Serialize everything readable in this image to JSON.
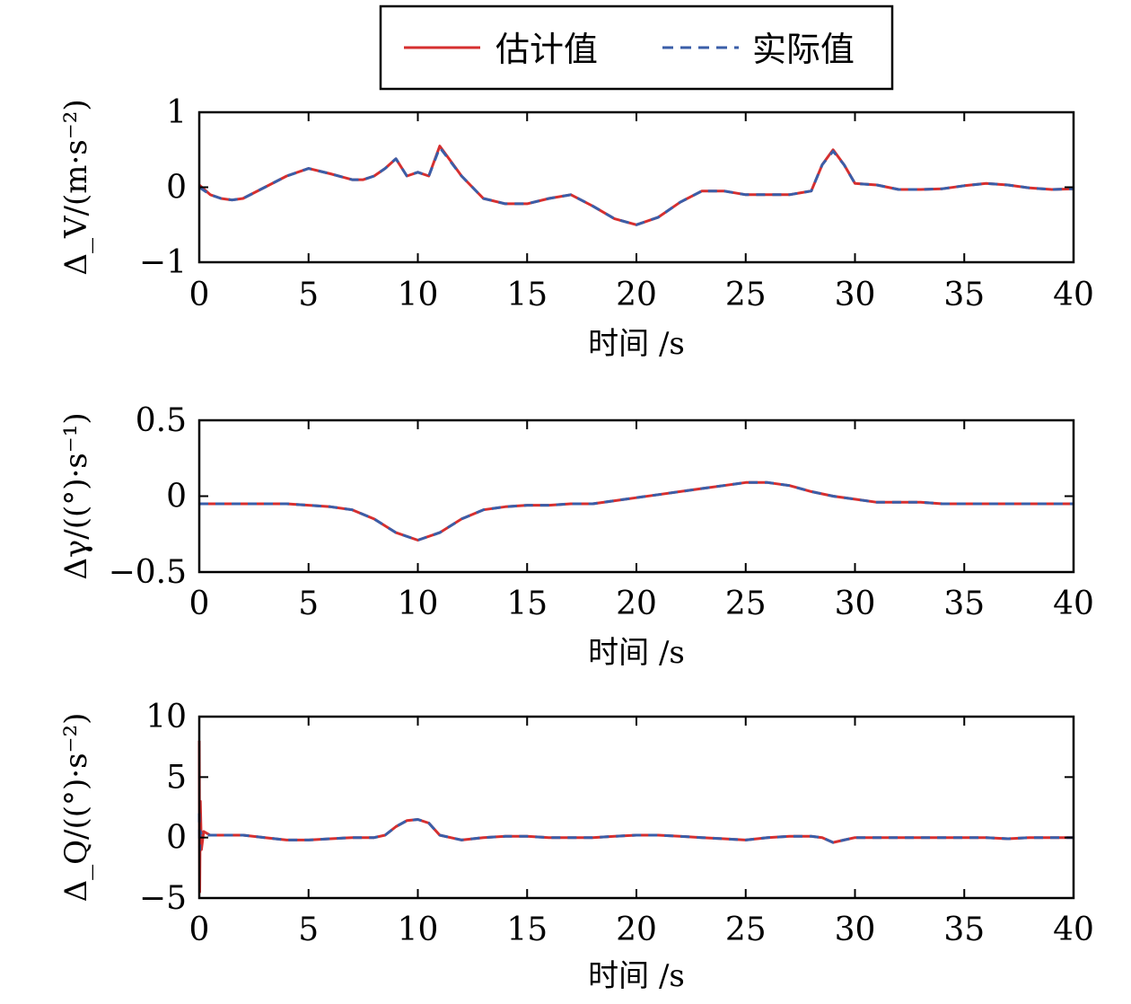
{
  "legend": {
    "estimated_label": "估计值",
    "actual_label": "实际值"
  },
  "colors": {
    "estimated": "#d62f2f",
    "actual": "#3a5ea8",
    "axis": "#000000"
  },
  "chart_data": [
    {
      "type": "line",
      "ylabel": "Δ_V/(m·s⁻²)",
      "xlabel": "时间 /s",
      "xlim": [
        0,
        40
      ],
      "ylim": [
        -1,
        1
      ],
      "xticks": [
        0,
        5,
        10,
        15,
        20,
        25,
        30,
        35,
        40
      ],
      "yticks": [
        -1,
        0,
        1
      ],
      "ytick_labels": [
        "−1",
        "0",
        "1"
      ],
      "x": [
        0,
        0.5,
        1,
        1.5,
        2,
        3,
        4,
        5,
        6,
        7,
        7.5,
        8,
        8.5,
        9,
        9.5,
        10,
        10.5,
        11,
        12,
        13,
        14,
        15,
        16,
        17,
        18,
        19,
        20,
        21,
        22,
        23,
        24,
        25,
        26,
        27,
        28,
        28.5,
        29,
        29.5,
        30,
        31,
        32,
        33,
        34,
        35,
        36,
        37,
        38,
        39,
        40
      ],
      "series": [
        {
          "name": "估计值",
          "values": [
            0.03,
            -0.1,
            -0.15,
            -0.17,
            -0.15,
            0.0,
            0.15,
            0.25,
            0.18,
            0.1,
            0.1,
            0.15,
            0.25,
            0.38,
            0.15,
            0.2,
            0.15,
            0.55,
            0.15,
            -0.15,
            -0.22,
            -0.22,
            -0.15,
            -0.1,
            -0.25,
            -0.42,
            -0.5,
            -0.4,
            -0.2,
            -0.05,
            -0.05,
            -0.1,
            -0.1,
            -0.1,
            -0.05,
            0.3,
            0.5,
            0.3,
            0.05,
            0.03,
            -0.03,
            -0.03,
            -0.02,
            0.02,
            0.05,
            0.03,
            -0.01,
            -0.03,
            -0.02
          ]
        },
        {
          "name": "实际值",
          "values": [
            0.0,
            -0.1,
            -0.15,
            -0.17,
            -0.15,
            0.0,
            0.15,
            0.25,
            0.18,
            0.1,
            0.1,
            0.15,
            0.25,
            0.38,
            0.15,
            0.2,
            0.15,
            0.53,
            0.15,
            -0.15,
            -0.22,
            -0.22,
            -0.15,
            -0.1,
            -0.25,
            -0.42,
            -0.5,
            -0.4,
            -0.2,
            -0.05,
            -0.05,
            -0.1,
            -0.1,
            -0.1,
            -0.05,
            0.3,
            0.48,
            0.3,
            0.05,
            0.03,
            -0.03,
            -0.03,
            -0.02,
            0.02,
            0.05,
            0.03,
            -0.01,
            -0.03,
            -0.02
          ]
        }
      ]
    },
    {
      "type": "line",
      "ylabel": "Δγ/((°)·s⁻¹)",
      "xlabel": "时间 /s",
      "xlim": [
        0,
        40
      ],
      "ylim": [
        -0.5,
        0.5
      ],
      "xticks": [
        0,
        5,
        10,
        15,
        20,
        25,
        30,
        35,
        40
      ],
      "yticks": [
        -0.5,
        0,
        0.5
      ],
      "ytick_labels": [
        "−0.5",
        "0",
        "0.5"
      ],
      "x": [
        0,
        2,
        4,
        5,
        6,
        7,
        8,
        9,
        10,
        11,
        12,
        13,
        14,
        15,
        16,
        17,
        18,
        19,
        20,
        21,
        22,
        23,
        24,
        25,
        26,
        27,
        28,
        29,
        30,
        31,
        32,
        33,
        34,
        35,
        36,
        37,
        38,
        39,
        40
      ],
      "series": [
        {
          "name": "估计值",
          "values": [
            -0.05,
            -0.05,
            -0.05,
            -0.06,
            -0.07,
            -0.09,
            -0.15,
            -0.24,
            -0.29,
            -0.24,
            -0.15,
            -0.09,
            -0.07,
            -0.06,
            -0.06,
            -0.05,
            -0.05,
            -0.03,
            -0.01,
            0.01,
            0.03,
            0.05,
            0.07,
            0.09,
            0.09,
            0.07,
            0.03,
            0.0,
            -0.02,
            -0.04,
            -0.04,
            -0.04,
            -0.05,
            -0.05,
            -0.05,
            -0.05,
            -0.05,
            -0.05,
            -0.05
          ]
        },
        {
          "name": "实际值",
          "values": [
            -0.05,
            -0.05,
            -0.05,
            -0.06,
            -0.07,
            -0.09,
            -0.15,
            -0.24,
            -0.29,
            -0.24,
            -0.15,
            -0.09,
            -0.07,
            -0.06,
            -0.06,
            -0.05,
            -0.05,
            -0.03,
            -0.01,
            0.01,
            0.03,
            0.05,
            0.07,
            0.09,
            0.09,
            0.07,
            0.03,
            0.0,
            -0.02,
            -0.04,
            -0.04,
            -0.04,
            -0.05,
            -0.05,
            -0.05,
            -0.05,
            -0.05,
            -0.05,
            -0.05
          ]
        }
      ]
    },
    {
      "type": "line",
      "ylabel": "Δ_Q/((°)·s⁻²)",
      "xlabel": "时间 /s",
      "xlim": [
        0,
        40
      ],
      "ylim": [
        -5,
        10
      ],
      "xticks": [
        0,
        5,
        10,
        15,
        20,
        25,
        30,
        35,
        40
      ],
      "yticks": [
        -5,
        0,
        5,
        10
      ],
      "ytick_labels": [
        "−5",
        "0",
        "5",
        "10"
      ],
      "x": [
        0,
        0.02,
        0.05,
        0.1,
        0.2,
        0.5,
        1,
        2,
        3,
        4,
        5,
        6,
        7,
        8,
        8.5,
        9,
        9.5,
        10,
        10.5,
        11,
        12,
        13,
        14,
        15,
        16,
        17,
        18,
        19,
        20,
        21,
        22,
        23,
        24,
        25,
        26,
        27,
        28,
        28.5,
        29,
        29.5,
        30,
        31,
        32,
        33,
        34,
        35,
        36,
        37,
        38,
        39,
        40
      ],
      "series": [
        {
          "name": "估计值",
          "values": [
            8.0,
            -4.5,
            3.0,
            -1.0,
            0.5,
            0.2,
            0.2,
            0.2,
            0.0,
            -0.2,
            -0.2,
            -0.1,
            0.0,
            0.0,
            0.2,
            0.9,
            1.4,
            1.5,
            1.2,
            0.2,
            -0.2,
            0.0,
            0.1,
            0.1,
            0.0,
            0.0,
            0.0,
            0.1,
            0.2,
            0.2,
            0.1,
            0.0,
            -0.1,
            -0.2,
            0.0,
            0.1,
            0.1,
            0.0,
            -0.4,
            -0.2,
            0.0,
            0.0,
            0.0,
            0.0,
            0.0,
            0.0,
            0.0,
            -0.1,
            0.0,
            0.0,
            0.0
          ]
        },
        {
          "name": "实际值",
          "values": [
            2.0,
            -1.0,
            0.5,
            0.2,
            0.2,
            0.2,
            0.2,
            0.2,
            0.0,
            -0.2,
            -0.2,
            -0.1,
            0.0,
            0.0,
            0.2,
            0.9,
            1.4,
            1.5,
            1.2,
            0.2,
            -0.2,
            0.0,
            0.1,
            0.1,
            0.0,
            0.0,
            0.0,
            0.1,
            0.2,
            0.2,
            0.1,
            0.0,
            -0.1,
            -0.2,
            0.0,
            0.1,
            0.1,
            0.0,
            -0.4,
            -0.2,
            0.0,
            0.0,
            0.0,
            0.0,
            0.0,
            0.0,
            0.0,
            -0.1,
            0.0,
            0.0,
            0.0
          ]
        }
      ]
    }
  ]
}
